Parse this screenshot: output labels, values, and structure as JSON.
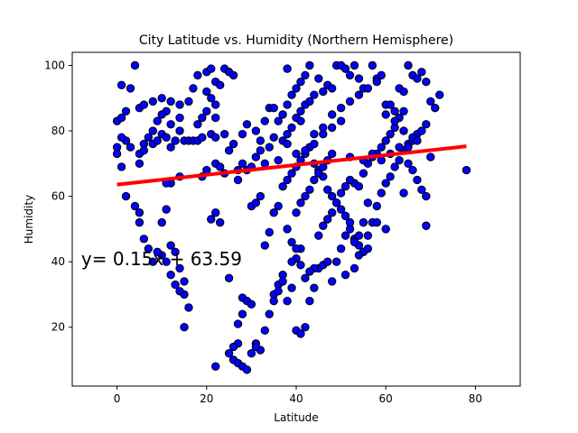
{
  "chart_data": {
    "type": "scatter",
    "title": "City Latitude vs. Humidity (Northern Hemisphere)",
    "xlabel": "Latitude",
    "ylabel": "Humidity",
    "xlim": [
      -10,
      90
    ],
    "ylim": [
      2,
      104
    ],
    "xticks": [
      0,
      20,
      40,
      60,
      80
    ],
    "yticks": [
      20,
      40,
      60,
      80,
      100
    ],
    "xtick_labels": [
      "0",
      "20",
      "40",
      "60",
      "80"
    ],
    "ytick_labels": [
      "20",
      "40",
      "60",
      "80",
      "100"
    ],
    "grid": false,
    "colors": {
      "points": "#0000ff",
      "point_edge": "#000000",
      "regression": "#ff0000",
      "annotation": "#ff0000"
    },
    "regression": {
      "slope": 0.15,
      "intercept": 63.59,
      "x_range": [
        0,
        78
      ]
    },
    "annotation": {
      "text": "y= 0.15x + 63.59",
      "x": -8,
      "y": 39
    },
    "series": [
      {
        "points": [
          [
            4,
            100
          ],
          [
            1,
            94
          ],
          [
            3,
            93
          ],
          [
            0,
            83
          ],
          [
            1,
            84
          ],
          [
            2,
            86
          ],
          [
            5,
            87
          ],
          [
            6,
            88
          ],
          [
            8,
            89
          ],
          [
            10,
            90
          ],
          [
            12,
            89
          ],
          [
            14,
            88
          ],
          [
            16,
            89
          ],
          [
            17,
            93
          ],
          [
            18,
            97
          ],
          [
            20,
            98
          ],
          [
            21,
            99
          ],
          [
            22,
            95
          ],
          [
            23,
            94
          ],
          [
            24,
            99
          ],
          [
            25,
            98
          ],
          [
            26,
            97
          ],
          [
            20,
            92
          ],
          [
            21,
            90
          ],
          [
            22,
            88
          ],
          [
            20,
            86
          ],
          [
            19,
            84
          ],
          [
            22,
            84
          ],
          [
            18,
            82
          ],
          [
            14,
            84
          ],
          [
            12,
            82
          ],
          [
            11,
            86
          ],
          [
            10,
            85
          ],
          [
            9,
            83
          ],
          [
            8,
            80
          ],
          [
            7,
            78
          ],
          [
            6,
            76
          ],
          [
            5,
            73
          ],
          [
            3,
            75
          ],
          [
            2,
            77
          ],
          [
            1,
            78
          ],
          [
            0,
            73
          ],
          [
            0,
            75
          ],
          [
            1,
            69
          ],
          [
            5,
            70
          ],
          [
            6,
            74
          ],
          [
            8,
            76
          ],
          [
            9,
            77
          ],
          [
            10,
            79
          ],
          [
            11,
            78
          ],
          [
            12,
            75
          ],
          [
            13,
            77
          ],
          [
            14,
            80
          ],
          [
            15,
            77
          ],
          [
            16,
            77
          ],
          [
            17,
            77
          ],
          [
            18,
            77
          ],
          [
            19,
            78
          ],
          [
            21,
            79
          ],
          [
            22,
            78
          ],
          [
            24,
            79
          ],
          [
            25,
            74
          ],
          [
            27,
            68
          ],
          [
            28,
            70
          ],
          [
            26,
            76
          ],
          [
            28,
            79
          ],
          [
            29,
            82
          ],
          [
            31,
            80
          ],
          [
            32,
            77
          ],
          [
            33,
            83
          ],
          [
            34,
            87
          ],
          [
            35,
            87
          ],
          [
            36,
            83
          ],
          [
            34,
            75
          ],
          [
            35,
            78
          ],
          [
            37,
            77
          ],
          [
            38,
            79
          ],
          [
            39,
            81
          ],
          [
            40,
            84
          ],
          [
            41,
            86
          ],
          [
            42,
            88
          ],
          [
            43,
            89
          ],
          [
            44,
            91
          ],
          [
            45,
            96
          ],
          [
            46,
            92
          ],
          [
            47,
            94
          ],
          [
            48,
            93
          ],
          [
            49,
            100
          ],
          [
            50,
            100
          ],
          [
            51,
            99
          ],
          [
            52,
            97
          ],
          [
            53,
            100
          ],
          [
            54,
            96
          ],
          [
            55,
            93
          ],
          [
            57,
            100
          ],
          [
            58,
            96
          ],
          [
            59,
            97
          ],
          [
            60,
            88
          ],
          [
            61,
            88
          ],
          [
            62,
            86
          ],
          [
            63,
            93
          ],
          [
            64,
            92
          ],
          [
            65,
            100
          ],
          [
            66,
            97
          ],
          [
            67,
            96
          ],
          [
            68,
            98
          ],
          [
            69,
            95
          ],
          [
            70,
            89
          ],
          [
            71,
            87
          ],
          [
            72,
            91
          ],
          [
            30,
            57
          ],
          [
            31,
            58
          ],
          [
            32,
            60
          ],
          [
            33,
            45
          ],
          [
            34,
            49
          ],
          [
            35,
            55
          ],
          [
            36,
            57
          ],
          [
            37,
            63
          ],
          [
            38,
            65
          ],
          [
            39,
            67
          ],
          [
            40,
            69
          ],
          [
            41,
            71
          ],
          [
            42,
            73
          ],
          [
            43,
            75
          ],
          [
            44,
            70
          ],
          [
            45,
            68
          ],
          [
            46,
            66
          ],
          [
            47,
            62
          ],
          [
            48,
            60
          ],
          [
            49,
            58
          ],
          [
            50,
            56
          ],
          [
            51,
            54
          ],
          [
            52,
            50
          ],
          [
            53,
            47
          ],
          [
            54,
            45
          ],
          [
            55,
            43
          ],
          [
            56,
            48
          ],
          [
            57,
            52
          ],
          [
            58,
            57
          ],
          [
            59,
            61
          ],
          [
            60,
            64
          ],
          [
            61,
            66
          ],
          [
            62,
            69
          ],
          [
            63,
            71
          ],
          [
            64,
            74
          ],
          [
            65,
            76
          ],
          [
            66,
            77
          ],
          [
            67,
            79
          ],
          [
            68,
            80
          ],
          [
            69,
            82
          ],
          [
            28,
            29
          ],
          [
            29,
            28
          ],
          [
            30,
            27
          ],
          [
            31,
            15
          ],
          [
            32,
            13
          ],
          [
            33,
            19
          ],
          [
            34,
            24
          ],
          [
            35,
            30
          ],
          [
            36,
            33
          ],
          [
            37,
            36
          ],
          [
            38,
            28
          ],
          [
            39,
            32
          ],
          [
            40,
            19
          ],
          [
            41,
            18
          ],
          [
            42,
            20
          ],
          [
            43,
            28
          ],
          [
            44,
            32
          ],
          [
            45,
            38
          ],
          [
            46,
            39
          ],
          [
            47,
            40
          ],
          [
            48,
            34
          ],
          [
            49,
            40
          ],
          [
            50,
            44
          ],
          [
            51,
            48
          ],
          [
            52,
            52
          ],
          [
            53,
            46
          ],
          [
            54,
            48
          ],
          [
            55,
            52
          ],
          [
            56,
            58
          ],
          [
            22,
            8
          ],
          [
            25,
            12
          ],
          [
            26,
            10
          ],
          [
            27,
            9
          ],
          [
            28,
            8
          ],
          [
            29,
            7
          ],
          [
            30,
            12
          ],
          [
            31,
            14
          ],
          [
            27,
            15
          ],
          [
            26,
            14
          ],
          [
            27,
            21
          ],
          [
            28,
            24
          ],
          [
            25,
            35
          ],
          [
            23,
            52
          ],
          [
            22,
            55
          ],
          [
            21,
            53
          ],
          [
            16,
            26
          ],
          [
            15,
            30
          ],
          [
            14,
            31
          ],
          [
            13,
            33
          ],
          [
            12,
            36
          ],
          [
            11,
            40
          ],
          [
            10,
            42
          ],
          [
            9,
            43
          ],
          [
            8,
            40
          ],
          [
            7,
            44
          ],
          [
            6,
            47
          ],
          [
            5,
            52
          ],
          [
            5,
            55
          ],
          [
            4,
            57
          ],
          [
            2,
            60
          ],
          [
            10,
            52
          ],
          [
            11,
            56
          ],
          [
            12,
            45
          ],
          [
            13,
            43
          ],
          [
            14,
            38
          ],
          [
            15,
            34
          ],
          [
            15,
            20
          ],
          [
            14,
            66
          ],
          [
            12,
            64
          ],
          [
            11,
            64
          ],
          [
            19,
            66
          ],
          [
            20,
            68
          ],
          [
            22,
            70
          ],
          [
            23,
            69
          ],
          [
            24,
            67
          ],
          [
            27,
            65
          ],
          [
            29,
            68
          ],
          [
            30,
            69
          ],
          [
            31,
            72
          ],
          [
            32,
            74
          ],
          [
            33,
            70
          ],
          [
            36,
            71
          ],
          [
            38,
            76
          ],
          [
            40,
            73
          ],
          [
            42,
            74
          ],
          [
            44,
            76
          ],
          [
            46,
            79
          ],
          [
            48,
            81
          ],
          [
            50,
            83
          ],
          [
            52,
            72
          ],
          [
            53,
            64
          ],
          [
            54,
            63
          ],
          [
            55,
            67
          ],
          [
            56,
            70
          ],
          [
            57,
            72
          ],
          [
            58,
            73
          ],
          [
            59,
            75
          ],
          [
            60,
            77
          ],
          [
            61,
            79
          ],
          [
            62,
            81
          ],
          [
            63,
            84
          ],
          [
            64,
            86
          ],
          [
            65,
            70
          ],
          [
            66,
            68
          ],
          [
            67,
            65
          ],
          [
            68,
            62
          ],
          [
            69,
            60
          ],
          [
            70,
            72
          ],
          [
            78,
            68
          ],
          [
            69,
            51
          ],
          [
            64,
            61
          ],
          [
            60,
            50
          ],
          [
            58,
            52
          ],
          [
            56,
            44
          ],
          [
            54,
            42
          ],
          [
            53,
            38
          ],
          [
            51,
            36
          ],
          [
            44,
            38
          ],
          [
            43,
            37
          ],
          [
            41,
            44
          ],
          [
            40,
            41
          ],
          [
            39,
            40
          ],
          [
            37,
            34
          ],
          [
            36,
            31
          ],
          [
            35,
            28
          ],
          [
            38,
            50
          ],
          [
            39,
            46
          ],
          [
            40,
            44
          ],
          [
            41,
            39
          ],
          [
            42,
            35
          ],
          [
            45,
            48
          ],
          [
            46,
            51
          ],
          [
            47,
            53
          ],
          [
            48,
            55
          ],
          [
            49,
            58
          ],
          [
            50,
            61
          ],
          [
            51,
            63
          ],
          [
            52,
            65
          ],
          [
            40,
            55
          ],
          [
            41,
            58
          ],
          [
            42,
            60
          ],
          [
            43,
            62
          ],
          [
            44,
            65
          ],
          [
            45,
            67
          ],
          [
            46,
            69
          ],
          [
            47,
            71
          ],
          [
            48,
            73
          ],
          [
            37,
            85
          ],
          [
            38,
            88
          ],
          [
            39,
            91
          ],
          [
            40,
            93
          ],
          [
            41,
            95
          ],
          [
            42,
            97
          ],
          [
            43,
            100
          ],
          [
            38,
            99
          ],
          [
            41,
            83
          ],
          [
            44,
            79
          ],
          [
            46,
            81
          ],
          [
            48,
            85
          ],
          [
            50,
            87
          ],
          [
            52,
            89
          ],
          [
            54,
            91
          ],
          [
            56,
            93
          ],
          [
            58,
            95
          ],
          [
            60,
            85
          ],
          [
            62,
            83
          ],
          [
            64,
            80
          ],
          [
            66,
            78
          ],
          [
            55,
            71
          ],
          [
            57,
            73
          ],
          [
            59,
            71
          ],
          [
            61,
            73
          ],
          [
            63,
            75
          ],
          [
            65,
            75
          ],
          [
            67,
            77
          ]
        ]
      }
    ]
  }
}
